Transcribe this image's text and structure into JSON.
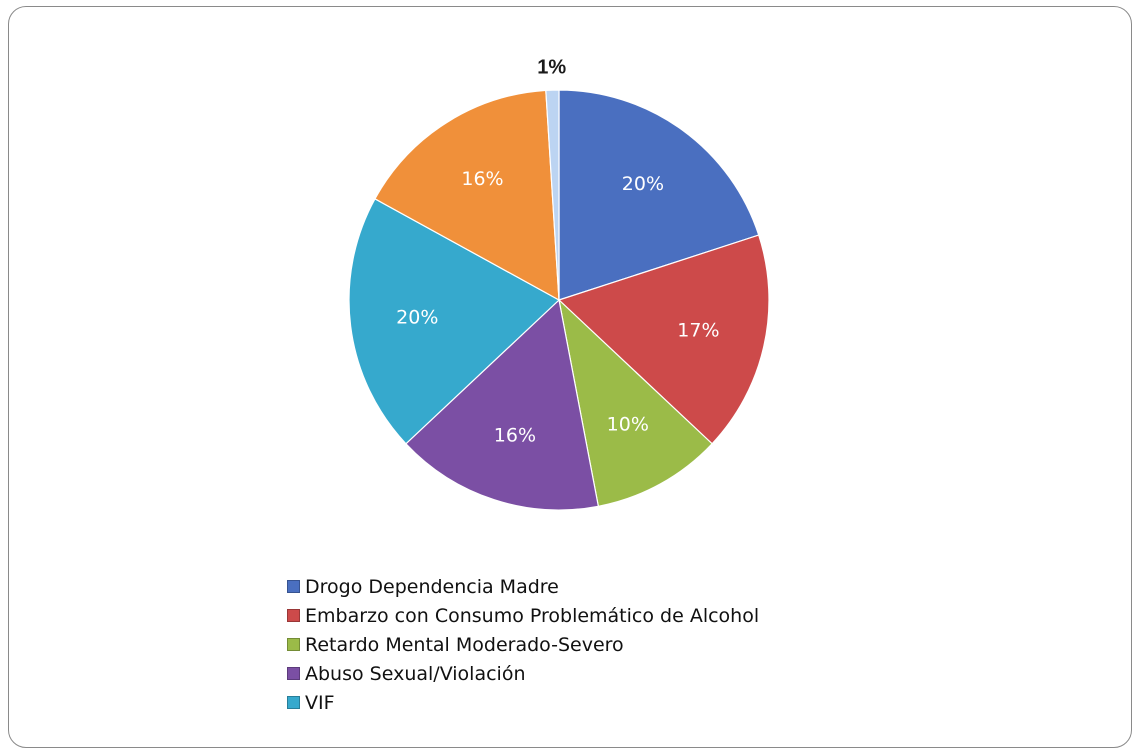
{
  "chart_data": {
    "type": "pie",
    "slices": [
      {
        "label": "Drogo Dependencia Madre",
        "value": 20,
        "display": "20%",
        "color": "#4a6fc0"
      },
      {
        "label": "Embarzo con Consumo Problemático de Alcohol",
        "value": 17,
        "display": "17%",
        "color": "#cd4a4a"
      },
      {
        "label": "Retardo Mental Moderado-Severo",
        "value": 10,
        "display": "10%",
        "color": "#9bbb48"
      },
      {
        "label": "Abuso Sexual/Violación",
        "value": 16,
        "display": "16%",
        "color": "#7b4fa4"
      },
      {
        "label": "VIF",
        "value": 20,
        "display": "20%",
        "color": "#36a9cd"
      },
      {
        "label": "",
        "value": 16,
        "display": "16%",
        "color": "#f0903a"
      },
      {
        "label": "",
        "value": 1,
        "display": "1%",
        "color": "#bcd4f2"
      }
    ],
    "start_angle_deg": 0,
    "direction": "clockwise",
    "legend_position": "bottom"
  }
}
